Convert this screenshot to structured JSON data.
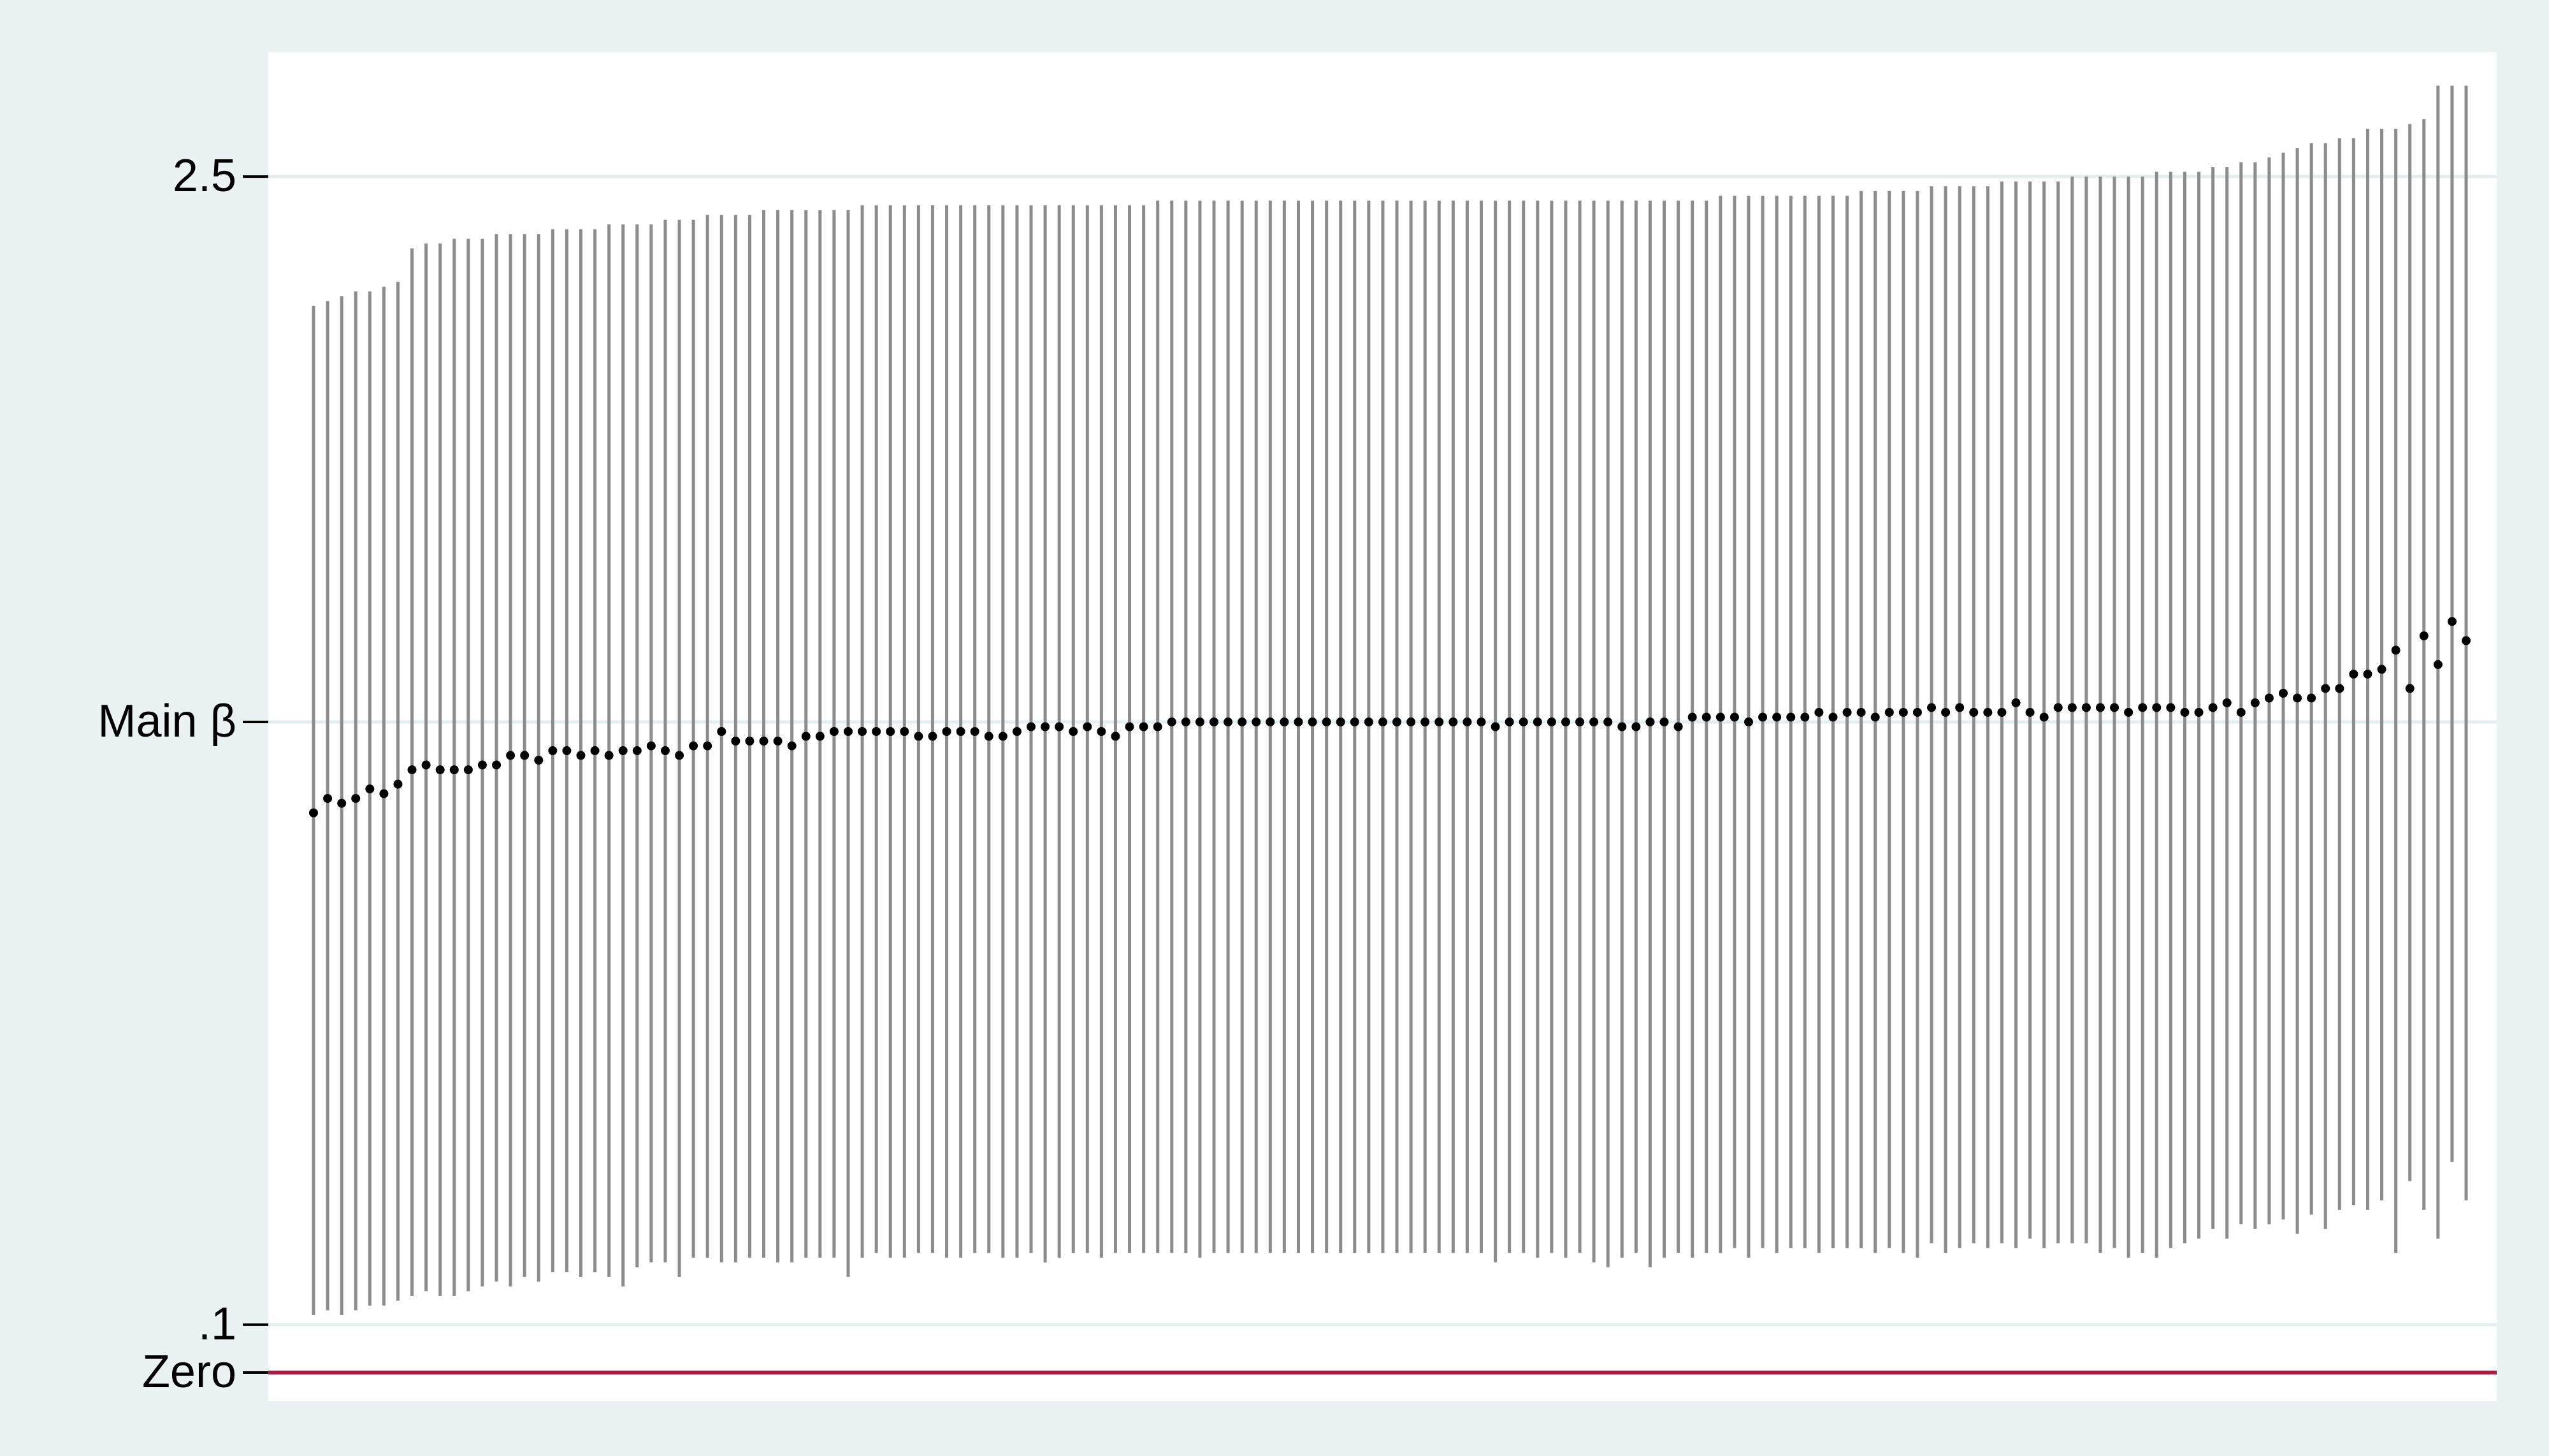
{
  "chart_data": {
    "type": "errorbar",
    "values": [
      1.17,
      1.2,
      1.19,
      1.2,
      1.22,
      1.21,
      1.23,
      1.26,
      1.27,
      1.26,
      1.26,
      1.26,
      1.27,
      1.27,
      1.29,
      1.29,
      1.28,
      1.3,
      1.3,
      1.29,
      1.3,
      1.29,
      1.3,
      1.3,
      1.31,
      1.3,
      1.29,
      1.31,
      1.31,
      1.34,
      1.32,
      1.32,
      1.32,
      1.32,
      1.31,
      1.33,
      1.33,
      1.34,
      1.34,
      1.34,
      1.34,
      1.34,
      1.34,
      1.33,
      1.33,
      1.34,
      1.34,
      1.34,
      1.33,
      1.33,
      1.34,
      1.35,
      1.35,
      1.35,
      1.34,
      1.35,
      1.34,
      1.33,
      1.35,
      1.35,
      1.35,
      1.36,
      1.36,
      1.36,
      1.36,
      1.36,
      1.36,
      1.36,
      1.36,
      1.36,
      1.36,
      1.36,
      1.36,
      1.36,
      1.36,
      1.36,
      1.36,
      1.36,
      1.36,
      1.36,
      1.36,
      1.36,
      1.36,
      1.36,
      1.35,
      1.36,
      1.36,
      1.36,
      1.36,
      1.36,
      1.36,
      1.36,
      1.36,
      1.35,
      1.35,
      1.36,
      1.36,
      1.35,
      1.37,
      1.37,
      1.37,
      1.37,
      1.36,
      1.37,
      1.37,
      1.37,
      1.37,
      1.38,
      1.37,
      1.38,
      1.38,
      1.37,
      1.38,
      1.38,
      1.38,
      1.39,
      1.38,
      1.39,
      1.38,
      1.38,
      1.38,
      1.4,
      1.38,
      1.37,
      1.39,
      1.39,
      1.39,
      1.39,
      1.39,
      1.38,
      1.39,
      1.39,
      1.39,
      1.38,
      1.38,
      1.39,
      1.4,
      1.38,
      1.4,
      1.41,
      1.42,
      1.41,
      1.41,
      1.43,
      1.43,
      1.46,
      1.46,
      1.47,
      1.51,
      1.43,
      1.54,
      1.48,
      1.57,
      1.53
    ],
    "lower": [
      0.12,
      0.13,
      0.12,
      0.13,
      0.14,
      0.14,
      0.15,
      0.16,
      0.17,
      0.16,
      0.16,
      0.17,
      0.18,
      0.19,
      0.18,
      0.2,
      0.19,
      0.21,
      0.21,
      0.2,
      0.21,
      0.2,
      0.18,
      0.22,
      0.23,
      0.23,
      0.2,
      0.24,
      0.24,
      0.23,
      0.23,
      0.24,
      0.24,
      0.23,
      0.23,
      0.24,
      0.24,
      0.24,
      0.2,
      0.24,
      0.25,
      0.24,
      0.24,
      0.25,
      0.25,
      0.24,
      0.24,
      0.25,
      0.25,
      0.24,
      0.24,
      0.25,
      0.23,
      0.24,
      0.25,
      0.25,
      0.24,
      0.25,
      0.25,
      0.25,
      0.25,
      0.25,
      0.25,
      0.24,
      0.25,
      0.25,
      0.25,
      0.25,
      0.25,
      0.25,
      0.25,
      0.25,
      0.25,
      0.25,
      0.25,
      0.25,
      0.25,
      0.25,
      0.25,
      0.25,
      0.25,
      0.25,
      0.25,
      0.25,
      0.23,
      0.25,
      0.25,
      0.24,
      0.25,
      0.24,
      0.25,
      0.23,
      0.22,
      0.24,
      0.25,
      0.22,
      0.24,
      0.25,
      0.24,
      0.25,
      0.25,
      0.26,
      0.24,
      0.26,
      0.25,
      0.26,
      0.26,
      0.25,
      0.26,
      0.26,
      0.26,
      0.25,
      0.26,
      0.25,
      0.24,
      0.27,
      0.25,
      0.26,
      0.27,
      0.26,
      0.27,
      0.26,
      0.28,
      0.26,
      0.27,
      0.27,
      0.27,
      0.25,
      0.26,
      0.24,
      0.25,
      0.24,
      0.26,
      0.27,
      0.28,
      0.3,
      0.28,
      0.31,
      0.3,
      0.31,
      0.32,
      0.29,
      0.33,
      0.3,
      0.34,
      0.35,
      0.34,
      0.36,
      0.25,
      0.4,
      0.34,
      0.28,
      0.44,
      0.36
    ],
    "upper": [
      2.23,
      2.24,
      2.25,
      2.26,
      2.26,
      2.27,
      2.28,
      2.35,
      2.36,
      2.36,
      2.37,
      2.37,
      2.37,
      2.38,
      2.38,
      2.38,
      2.38,
      2.39,
      2.39,
      2.39,
      2.39,
      2.4,
      2.4,
      2.4,
      2.4,
      2.41,
      2.41,
      2.41,
      2.42,
      2.42,
      2.42,
      2.42,
      2.43,
      2.43,
      2.43,
      2.43,
      2.43,
      2.43,
      2.43,
      2.44,
      2.44,
      2.44,
      2.44,
      2.44,
      2.44,
      2.44,
      2.44,
      2.44,
      2.44,
      2.44,
      2.44,
      2.44,
      2.44,
      2.44,
      2.44,
      2.44,
      2.44,
      2.44,
      2.44,
      2.44,
      2.45,
      2.45,
      2.45,
      2.45,
      2.45,
      2.45,
      2.45,
      2.45,
      2.45,
      2.45,
      2.45,
      2.45,
      2.45,
      2.45,
      2.45,
      2.45,
      2.45,
      2.45,
      2.45,
      2.45,
      2.45,
      2.45,
      2.45,
      2.45,
      2.45,
      2.45,
      2.45,
      2.45,
      2.45,
      2.45,
      2.45,
      2.45,
      2.45,
      2.45,
      2.45,
      2.45,
      2.45,
      2.45,
      2.45,
      2.45,
      2.46,
      2.46,
      2.46,
      2.46,
      2.46,
      2.46,
      2.46,
      2.46,
      2.46,
      2.46,
      2.47,
      2.47,
      2.47,
      2.47,
      2.47,
      2.48,
      2.48,
      2.48,
      2.48,
      2.48,
      2.49,
      2.49,
      2.49,
      2.49,
      2.49,
      2.5,
      2.5,
      2.5,
      2.5,
      2.5,
      2.5,
      2.51,
      2.51,
      2.51,
      2.51,
      2.52,
      2.52,
      2.53,
      2.53,
      2.54,
      2.55,
      2.56,
      2.57,
      2.57,
      2.58,
      2.58,
      2.6,
      2.6,
      2.6,
      2.61,
      2.62,
      2.69,
      2.69,
      2.69
    ],
    "point_color": "#000000",
    "interval_color": "#8c8c8c",
    "ylim": [
      -0.06,
      2.76
    ],
    "yticks": [
      2.5,
      {
        "value": 1.36,
        "label": "Main β"
      },
      {
        "value": 0.1,
        "label": ".1"
      },
      {
        "value": 0,
        "label": "Zero"
      }
    ],
    "grid": true,
    "hline": {
      "value": 0,
      "color": "#b3163f"
    }
  }
}
